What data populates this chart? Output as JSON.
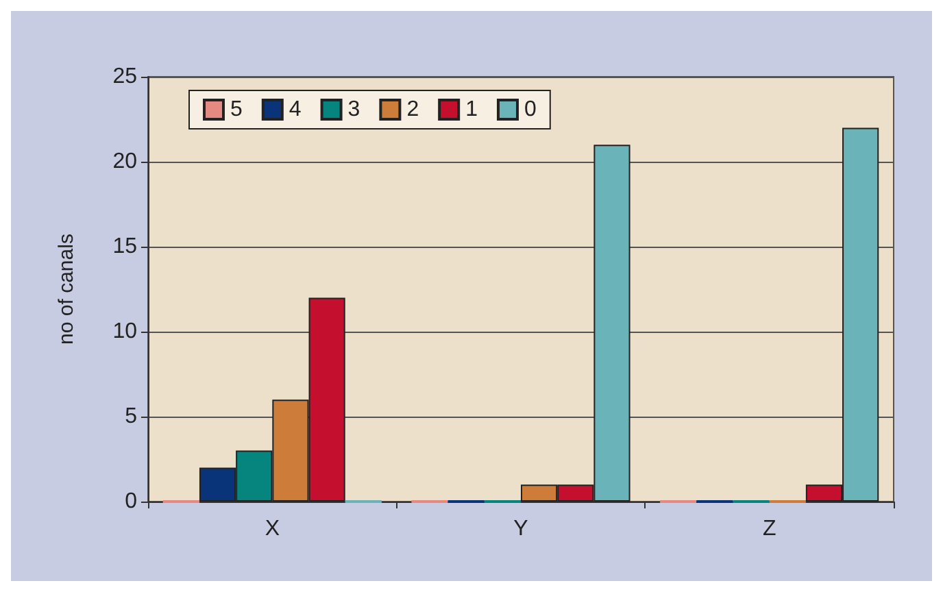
{
  "chart_data": {
    "type": "bar",
    "ylabel": "no of canals",
    "categories": [
      "X",
      "Y",
      "Z"
    ],
    "series": [
      {
        "name": "5",
        "color": "#e48a80",
        "values": [
          0,
          0,
          0
        ]
      },
      {
        "name": "4",
        "color": "#0a347a",
        "values": [
          2,
          0,
          0
        ]
      },
      {
        "name": "3",
        "color": "#06857f",
        "values": [
          3,
          0,
          0
        ]
      },
      {
        "name": "2",
        "color": "#cd7c3a",
        "values": [
          6,
          1,
          0
        ]
      },
      {
        "name": "1",
        "color": "#c4102e",
        "values": [
          12,
          1,
          1
        ]
      },
      {
        "name": "0",
        "color": "#6ab3b8",
        "values": [
          0,
          21,
          22
        ]
      }
    ],
    "ylim": [
      0,
      25
    ],
    "yticks": [
      0,
      5,
      10,
      15,
      20,
      25
    ],
    "grid": "y",
    "legend": "top left"
  }
}
